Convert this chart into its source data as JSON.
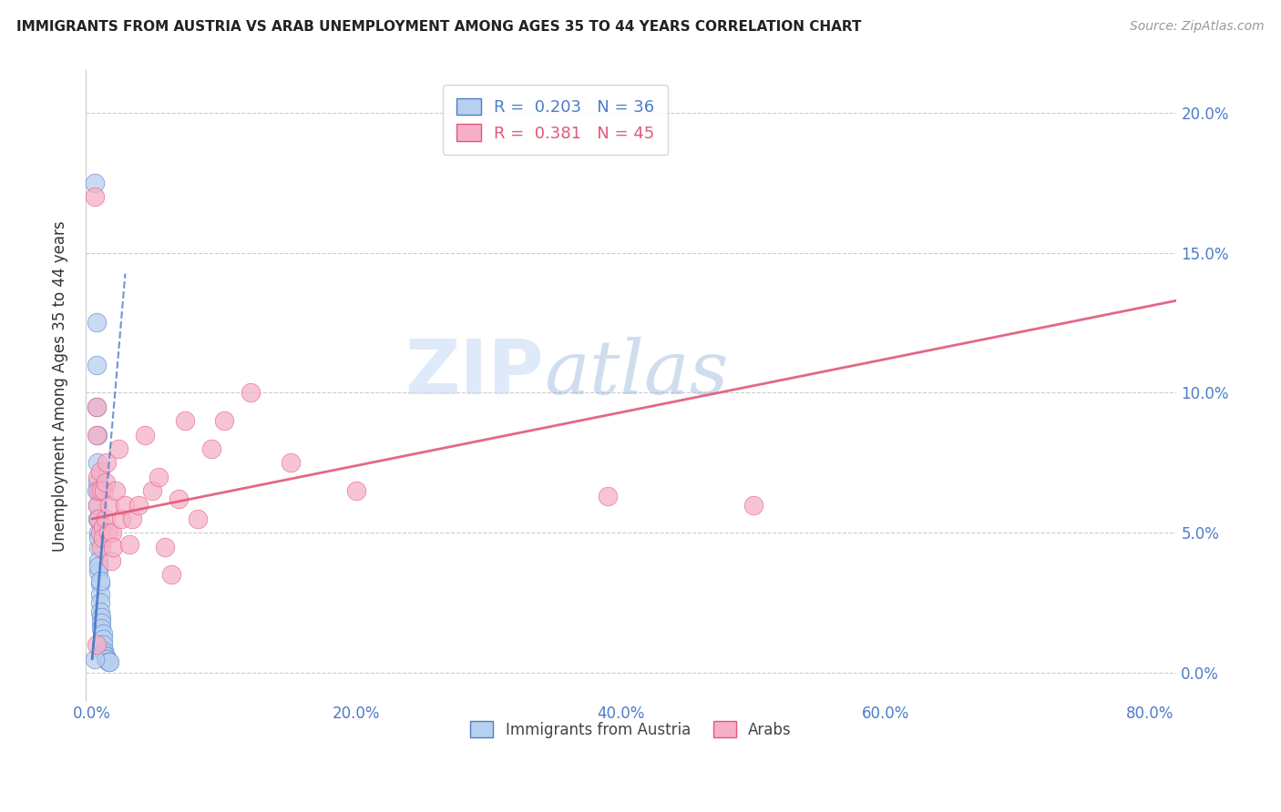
{
  "title": "IMMIGRANTS FROM AUSTRIA VS ARAB UNEMPLOYMENT AMONG AGES 35 TO 44 YEARS CORRELATION CHART",
  "source": "Source: ZipAtlas.com",
  "ylabel": "Unemployment Among Ages 35 to 44 years",
  "xlabel_ticks": [
    "0.0%",
    "20.0%",
    "40.0%",
    "60.0%",
    "80.0%"
  ],
  "xlabel_vals": [
    0.0,
    0.2,
    0.4,
    0.6,
    0.8
  ],
  "ylabel_ticks": [
    "0.0%",
    "5.0%",
    "10.0%",
    "15.0%",
    "20.0%"
  ],
  "ylabel_vals": [
    0.0,
    0.05,
    0.1,
    0.15,
    0.2
  ],
  "xlim": [
    -0.005,
    0.82
  ],
  "ylim": [
    -0.01,
    0.215
  ],
  "legend1_R": "0.203",
  "legend1_N": "36",
  "legend2_R": "0.381",
  "legend2_N": "45",
  "blue_color": "#b8d0f0",
  "blue_line_color": "#4d7cc9",
  "pink_color": "#f5b0c8",
  "pink_line_color": "#e05878",
  "watermark_zip": "ZIP",
  "watermark_atlas": "atlas",
  "blue_scatter_x": [
    0.002,
    0.003,
    0.003,
    0.003,
    0.004,
    0.004,
    0.004,
    0.004,
    0.005,
    0.005,
    0.005,
    0.005,
    0.005,
    0.006,
    0.006,
    0.006,
    0.006,
    0.007,
    0.007,
    0.007,
    0.008,
    0.008,
    0.008,
    0.009,
    0.009,
    0.01,
    0.01,
    0.011,
    0.012,
    0.013,
    0.003,
    0.004,
    0.005,
    0.005,
    0.006,
    0.002
  ],
  "blue_scatter_y": [
    0.175,
    0.125,
    0.11,
    0.095,
    0.085,
    0.075,
    0.068,
    0.06,
    0.055,
    0.05,
    0.045,
    0.04,
    0.036,
    0.032,
    0.028,
    0.025,
    0.022,
    0.02,
    0.018,
    0.016,
    0.014,
    0.012,
    0.01,
    0.008,
    0.007,
    0.006,
    0.005,
    0.005,
    0.004,
    0.004,
    0.065,
    0.055,
    0.048,
    0.038,
    0.033,
    0.005
  ],
  "pink_scatter_x": [
    0.002,
    0.003,
    0.003,
    0.004,
    0.004,
    0.005,
    0.005,
    0.006,
    0.006,
    0.007,
    0.007,
    0.008,
    0.008,
    0.009,
    0.01,
    0.01,
    0.011,
    0.012,
    0.013,
    0.014,
    0.015,
    0.016,
    0.018,
    0.02,
    0.022,
    0.025,
    0.028,
    0.03,
    0.035,
    0.04,
    0.045,
    0.05,
    0.055,
    0.06,
    0.065,
    0.07,
    0.08,
    0.09,
    0.1,
    0.12,
    0.15,
    0.2,
    0.39,
    0.5,
    0.003
  ],
  "pink_scatter_y": [
    0.17,
    0.085,
    0.095,
    0.07,
    0.06,
    0.065,
    0.055,
    0.072,
    0.05,
    0.065,
    0.045,
    0.052,
    0.048,
    0.065,
    0.055,
    0.068,
    0.075,
    0.05,
    0.06,
    0.04,
    0.05,
    0.045,
    0.065,
    0.08,
    0.055,
    0.06,
    0.046,
    0.055,
    0.06,
    0.085,
    0.065,
    0.07,
    0.045,
    0.035,
    0.062,
    0.09,
    0.055,
    0.08,
    0.09,
    0.1,
    0.075,
    0.065,
    0.063,
    0.06,
    0.01
  ],
  "blue_trend_x": [
    0.0,
    0.025
  ],
  "blue_trend_y_start": 0.005,
  "blue_trend_slope": 5.5,
  "pink_trend_x": [
    0.0,
    0.82
  ],
  "pink_trend_y_intercept": 0.055,
  "pink_trend_slope": 0.095
}
